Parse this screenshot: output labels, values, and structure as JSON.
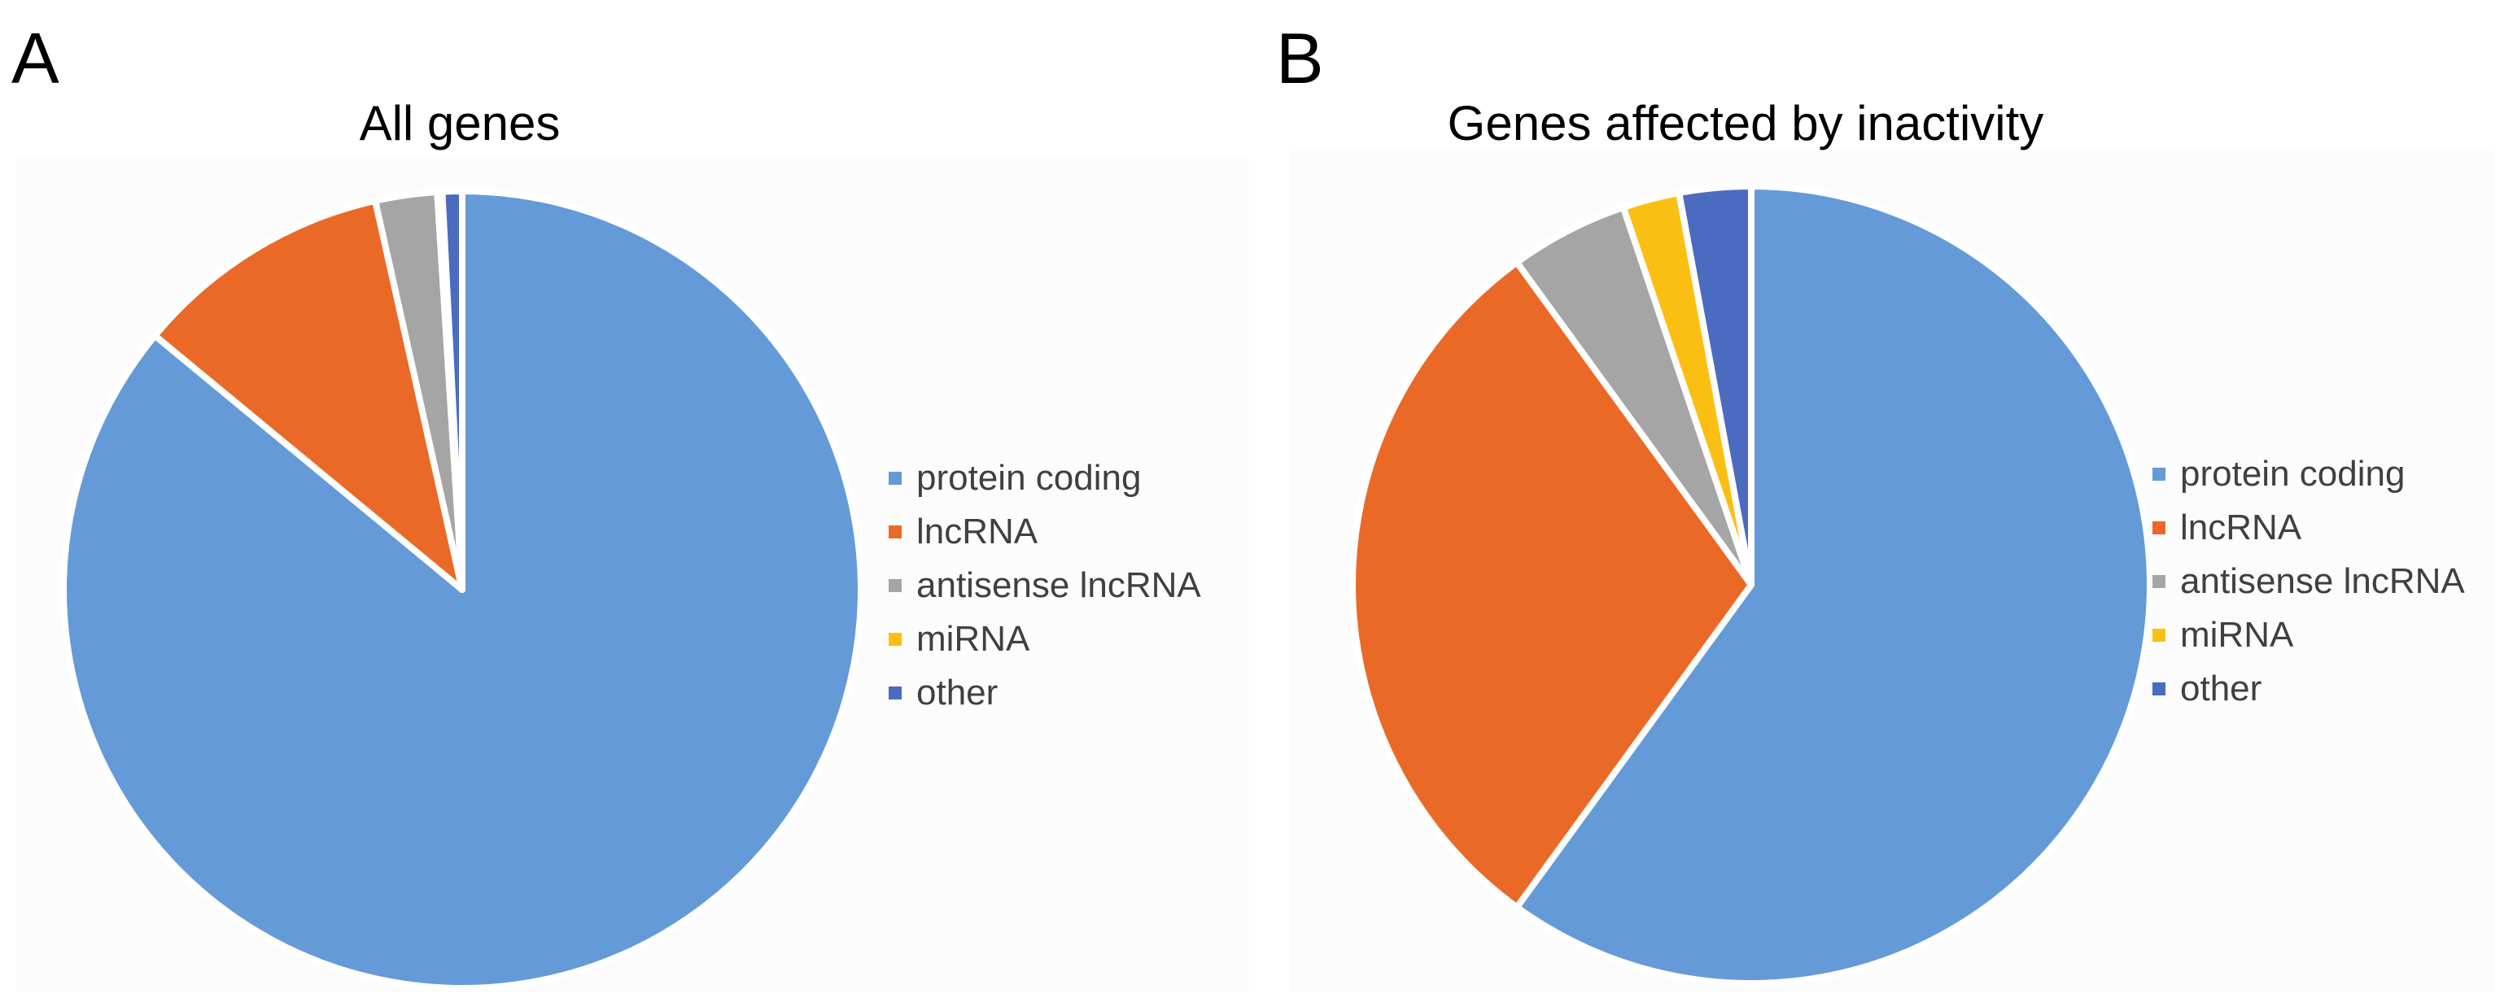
{
  "chart_data": [
    {
      "type": "pie",
      "panel_label": "A",
      "title": "All genes",
      "legend_position": "right",
      "categories": [
        "protein coding",
        "lncRNA",
        "antisense lncRNA",
        "miRNA",
        "other"
      ],
      "values": [
        86.0,
        10.5,
        2.5,
        0.2,
        0.8
      ],
      "colors": [
        "#659AD8",
        "#EB6926",
        "#A5A5A5",
        "#FBBF14",
        "#4A6BC0"
      ]
    },
    {
      "type": "pie",
      "panel_label": "B",
      "title": "Genes affected by inactivity",
      "legend_position": "right",
      "categories": [
        "protein coding",
        "lncRNA",
        "antisense lncRNA",
        "miRNA",
        "other"
      ],
      "values": [
        60.0,
        30.0,
        4.8,
        2.3,
        2.9
      ],
      "colors": [
        "#659AD8",
        "#EB6926",
        "#A5A5A5",
        "#FBBF14",
        "#4A6BC0"
      ]
    }
  ]
}
